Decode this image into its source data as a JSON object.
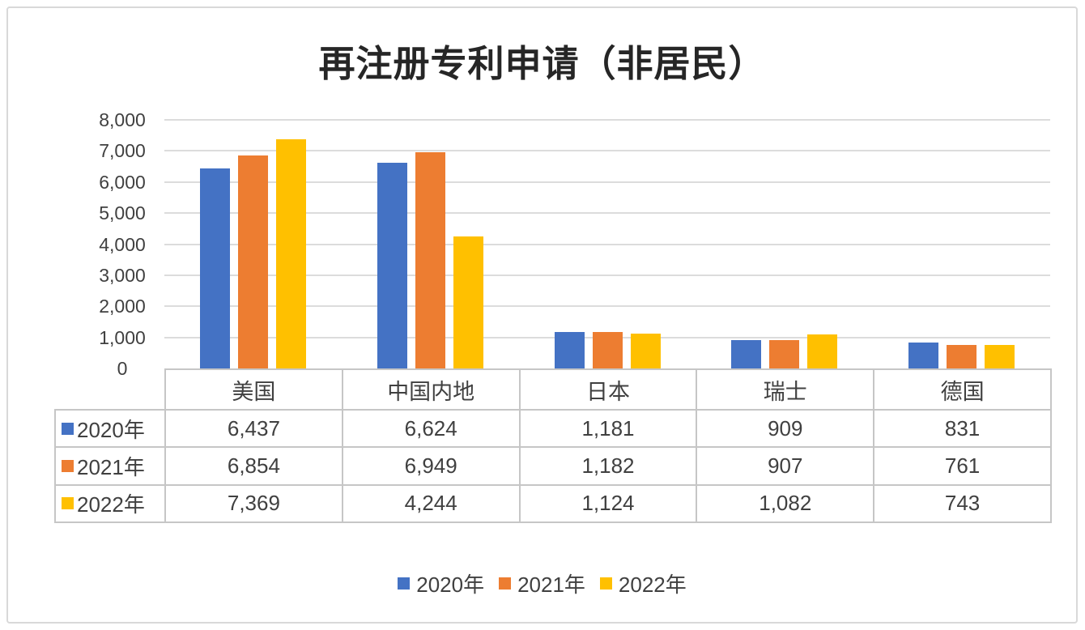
{
  "chart_data": {
    "type": "bar",
    "title": "再注册专利申请（非居民）",
    "categories": [
      "美国",
      "中国内地",
      "日本",
      "瑞士",
      "德国"
    ],
    "series": [
      {
        "name": "2020年",
        "color": "#4472C4",
        "values": [
          6437,
          6624,
          1181,
          909,
          831
        ]
      },
      {
        "name": "2021年",
        "color": "#ED7D31",
        "values": [
          6854,
          6949,
          1182,
          907,
          761
        ]
      },
      {
        "name": "2022年",
        "color": "#FFC000",
        "values": [
          7369,
          4244,
          1124,
          1082,
          743
        ]
      }
    ],
    "xlabel": "",
    "ylabel": "",
    "ylim": [
      0,
      8000
    ],
    "ytick_step": 1000,
    "yticks": [
      "0",
      "1,000",
      "2,000",
      "3,000",
      "4,000",
      "5,000",
      "6,000",
      "7,000",
      "8,000"
    ],
    "grid": true,
    "legend_position": "bottom",
    "show_data_table": true,
    "colors": {
      "gridline": "#DCDCDC",
      "table_border": "#C6C6C6",
      "axis_text": "#404040",
      "title_text": "#262626",
      "frame_border": "#D9D9D9"
    }
  }
}
